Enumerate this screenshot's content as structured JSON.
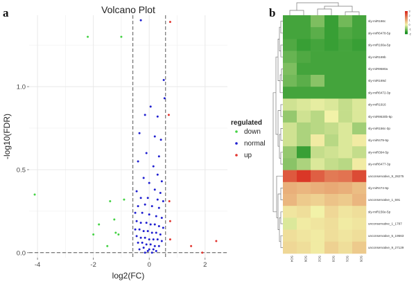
{
  "chart_data": [
    {
      "type": "scatter",
      "panel": "a",
      "title": "Volcano Plot",
      "xlabel": "log2(FC)",
      "ylabel": "-log10(FDR)",
      "xlim": [
        -4.3,
        2.8
      ],
      "ylim": [
        -0.03,
        1.43
      ],
      "x_ticks": [
        -4,
        -2,
        0,
        2
      ],
      "y_ticks": [
        0.0,
        0.5,
        1.0
      ],
      "y_tick_labels": [
        "0.0",
        "0.5",
        "1.0"
      ],
      "grid": true,
      "threshold_lines": {
        "x": [
          -0.585,
          0.585
        ],
        "y": [
          0.0
        ]
      },
      "legend": {
        "title": "regulated",
        "placement": "right",
        "entries": [
          {
            "key": "down",
            "label": "down",
            "color": "#44d244"
          },
          {
            "key": "normal",
            "label": "normal",
            "color": "#1f1fd0"
          },
          {
            "key": "up",
            "label": "up",
            "color": "#e2352f"
          }
        ]
      },
      "series": [
        {
          "key": "down",
          "color": "#44d244",
          "points": [
            [
              -2.2,
              1.3
            ],
            [
              -1.0,
              1.3
            ],
            [
              -4.1,
              0.35
            ],
            [
              -1.8,
              0.17
            ],
            [
              -2.0,
              0.11
            ],
            [
              -1.5,
              0.04
            ],
            [
              -1.2,
              0.12
            ],
            [
              -1.1,
              0.11
            ],
            [
              -1.25,
              0.2
            ],
            [
              -1.4,
              0.31
            ],
            [
              -0.9,
              0.32
            ]
          ]
        },
        {
          "key": "up",
          "color": "#e2352f",
          "points": [
            [
              0.75,
              1.39
            ],
            [
              0.7,
              0.83
            ],
            [
              1.5,
              0.04
            ],
            [
              2.4,
              0.07
            ],
            [
              1.9,
              0.0
            ],
            [
              0.72,
              0.31
            ],
            [
              0.75,
              0.19
            ],
            [
              0.75,
              0.08
            ]
          ]
        },
        {
          "key": "normal",
          "color": "#1f1fd0",
          "points": [
            [
              -0.3,
              1.4
            ],
            [
              0.52,
              1.04
            ],
            [
              0.55,
              0.93
            ],
            [
              -0.15,
              0.83
            ],
            [
              0.05,
              0.88
            ],
            [
              0.3,
              0.82
            ],
            [
              -0.35,
              0.72
            ],
            [
              0.2,
              0.7
            ],
            [
              0.42,
              0.68
            ],
            [
              -0.1,
              0.6
            ],
            [
              0.35,
              0.58
            ],
            [
              -0.4,
              0.55
            ],
            [
              0.15,
              0.52
            ],
            [
              0.3,
              0.47
            ],
            [
              -0.2,
              0.45
            ],
            [
              0.45,
              0.43
            ],
            [
              0.0,
              0.42
            ],
            [
              -0.45,
              0.37
            ],
            [
              0.2,
              0.38
            ],
            [
              0.4,
              0.36
            ],
            [
              -0.3,
              0.33
            ],
            [
              -0.05,
              0.33
            ],
            [
              0.3,
              0.32
            ],
            [
              0.5,
              0.31
            ],
            [
              -0.4,
              0.28
            ],
            [
              -0.15,
              0.29
            ],
            [
              0.1,
              0.28
            ],
            [
              0.35,
              0.27
            ],
            [
              -0.5,
              0.24
            ],
            [
              -0.25,
              0.24
            ],
            [
              0.0,
              0.23
            ],
            [
              0.25,
              0.22
            ],
            [
              0.45,
              0.21
            ],
            [
              -0.45,
              0.19
            ],
            [
              -0.3,
              0.18
            ],
            [
              -0.1,
              0.18
            ],
            [
              0.05,
              0.17
            ],
            [
              0.2,
              0.17
            ],
            [
              0.35,
              0.16
            ],
            [
              0.5,
              0.15
            ],
            [
              -0.5,
              0.14
            ],
            [
              -0.35,
              0.14
            ],
            [
              -0.2,
              0.13
            ],
            [
              -0.05,
              0.13
            ],
            [
              0.1,
              0.12
            ],
            [
              0.25,
              0.12
            ],
            [
              0.4,
              0.11
            ],
            [
              -0.45,
              0.1
            ],
            [
              -0.3,
              0.09
            ],
            [
              -0.15,
              0.09
            ],
            [
              0.0,
              0.08
            ],
            [
              0.15,
              0.08
            ],
            [
              0.3,
              0.08
            ],
            [
              0.45,
              0.07
            ],
            [
              -0.4,
              0.06
            ],
            [
              -0.25,
              0.06
            ],
            [
              -0.1,
              0.05
            ],
            [
              0.05,
              0.05
            ],
            [
              0.2,
              0.04
            ],
            [
              0.35,
              0.04
            ],
            [
              -0.2,
              0.03
            ],
            [
              0.0,
              0.02
            ],
            [
              0.15,
              0.02
            ],
            [
              -0.05,
              0.01
            ],
            [
              0.1,
              0.0
            ],
            [
              -0.15,
              0.0
            ],
            [
              0.25,
              0.01
            ],
            [
              -0.35,
              0.02
            ]
          ]
        }
      ]
    },
    {
      "type": "heatmap",
      "panel": "b",
      "rows": [
        "sly-miR166c",
        "sly-miR6478-5p",
        "sly-miR166a-5p",
        "sly-miR169b",
        "sly-miR9580a",
        "sly-miR169d",
        "sly-miR6472-3p",
        "sly-miR1916",
        "sly-miR9530b-5p",
        "sly-miR156c-3p",
        "sly-miR479-5p",
        "sly-miR394-5p",
        "sly-miR6477-3p",
        "unconservative_9_28275",
        "sly-miR474-5p",
        "unconservative_1_591",
        "sly-miR156e-5p",
        "unconservative_1_1787",
        "unconservative_5_19563",
        "unconservative_9_27129"
      ],
      "columns": [
        "SO4",
        "SO6",
        "SO2",
        "SO3",
        "SO1",
        "SO5"
      ],
      "color_scale": {
        "min": -2,
        "max": 3,
        "ticks": [
          "3",
          "2",
          "1",
          "0",
          "-1",
          "-2"
        ],
        "low": "#0a8a18",
        "mid": "#f2f2a8",
        "high": "#d82a1e"
      },
      "values": [
        [
          -1.5,
          -1.5,
          -1.0,
          -1.6,
          -1.1,
          -1.5
        ],
        [
          -1.5,
          -1.5,
          -1.3,
          -1.6,
          -1.4,
          -1.5
        ],
        [
          -1.4,
          -1.6,
          -1.5,
          -1.6,
          -1.5,
          -1.6
        ],
        [
          -1.2,
          -1.4,
          -1.5,
          -1.5,
          -1.5,
          -1.5
        ],
        [
          -1.0,
          -1.5,
          -1.5,
          -1.5,
          -1.5,
          -1.5
        ],
        [
          -1.1,
          -1.3,
          -0.9,
          -1.5,
          -1.5,
          -1.5
        ],
        [
          -1.5,
          -1.5,
          -1.5,
          -1.5,
          -1.5,
          -1.5
        ],
        [
          -0.3,
          -0.2,
          -0.1,
          -0.2,
          -0.4,
          -0.2
        ],
        [
          -0.8,
          -0.3,
          -0.5,
          0.0,
          -0.4,
          -0.2
        ],
        [
          -0.3,
          -0.6,
          -0.5,
          -0.4,
          -0.2,
          -0.7
        ],
        [
          -0.3,
          -0.6,
          0.1,
          -0.5,
          -0.2,
          0.1
        ],
        [
          -0.8,
          -1.6,
          -0.4,
          -0.3,
          -0.2,
          -0.4
        ],
        [
          -0.9,
          -0.6,
          -0.2,
          -0.4,
          -0.5,
          0.1
        ],
        [
          2.3,
          2.8,
          2.2,
          1.8,
          1.9,
          2.5
        ],
        [
          1.0,
          0.9,
          1.0,
          1.1,
          1.0,
          0.8
        ],
        [
          0.9,
          0.6,
          0.5,
          0.7,
          0.6,
          0.9
        ],
        [
          0.2,
          0.3,
          0.0,
          0.4,
          0.2,
          0.3
        ],
        [
          -0.2,
          0.1,
          0.2,
          0.3,
          0.1,
          0.2
        ],
        [
          0.3,
          0.2,
          0.1,
          0.3,
          0.2,
          0.3
        ],
        [
          0.4,
          0.3,
          0.1,
          0.5,
          0.3,
          0.6
        ]
      ]
    }
  ],
  "labels": {
    "panel_a": "a",
    "panel_b": "b"
  }
}
